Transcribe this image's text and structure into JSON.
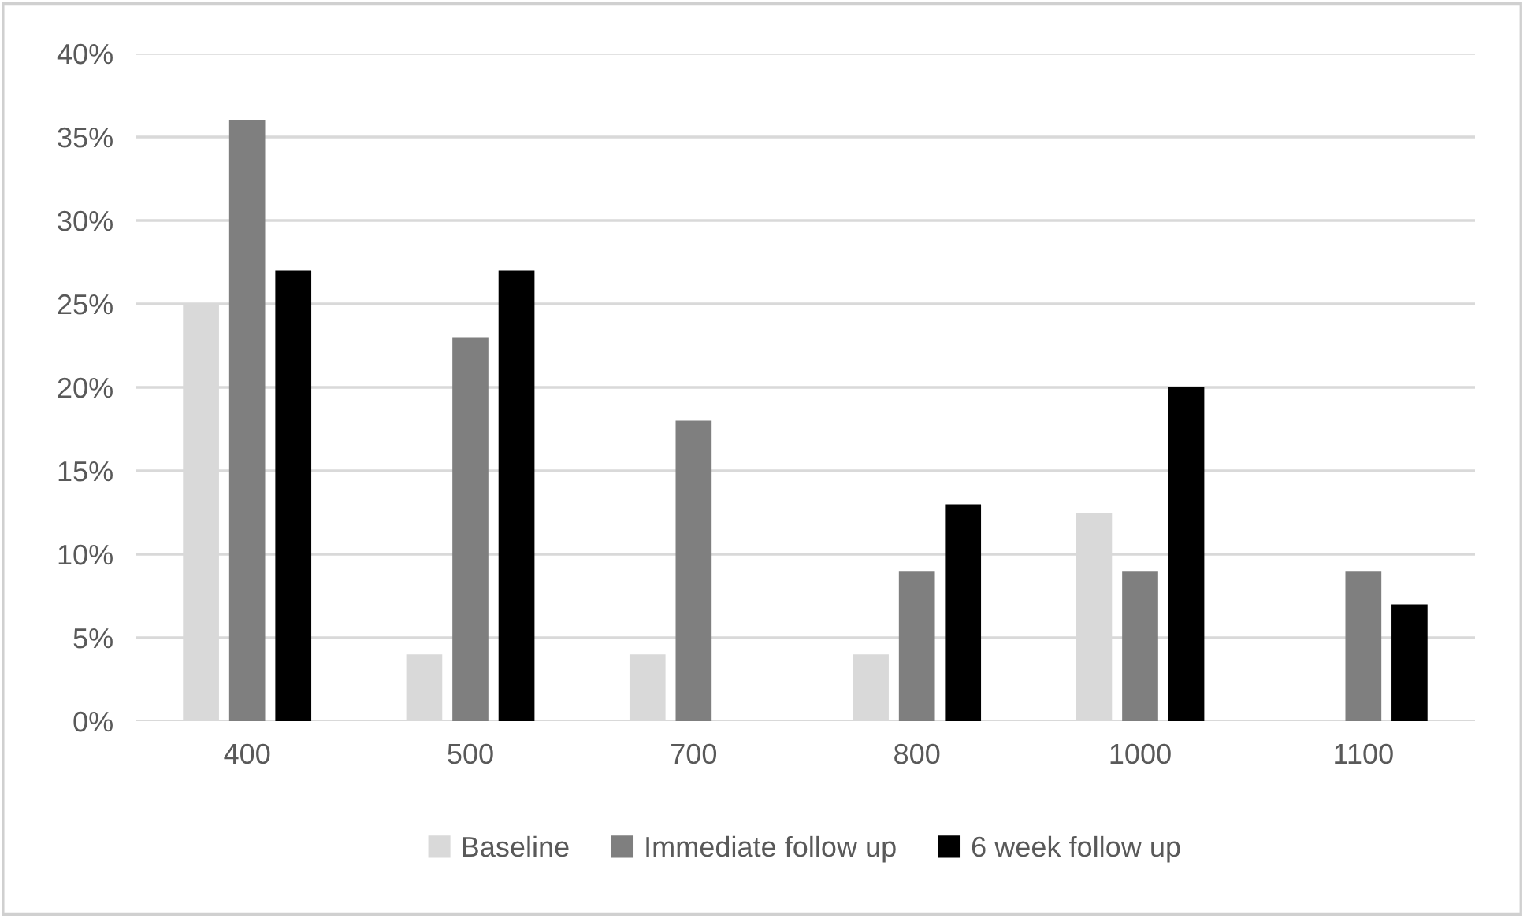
{
  "chart_data": {
    "type": "bar",
    "categories": [
      "400",
      "500",
      "700",
      "800",
      "1000",
      "1100"
    ],
    "series": [
      {
        "name": "Baseline",
        "color": "#d9d9d9",
        "values": [
          25,
          4,
          4,
          4,
          12.5,
          0
        ]
      },
      {
        "name": "Immediate follow up",
        "color": "#7f7f7f",
        "values": [
          36,
          23,
          18,
          9,
          9,
          9
        ]
      },
      {
        "name": "6 week follow up",
        "color": "#000000",
        "values": [
          27,
          27,
          0,
          13,
          20,
          7
        ]
      }
    ],
    "ylim": [
      0,
      40
    ],
    "yticks": [
      {
        "value": 0,
        "label": "0%"
      },
      {
        "value": 5,
        "label": "5%"
      },
      {
        "value": 10,
        "label": "10%"
      },
      {
        "value": 15,
        "label": "15%"
      },
      {
        "value": 20,
        "label": "20%"
      },
      {
        "value": 25,
        "label": "25%"
      },
      {
        "value": 30,
        "label": "30%"
      },
      {
        "value": 35,
        "label": "35%"
      },
      {
        "value": 40,
        "label": "40%"
      }
    ],
    "grid": "y",
    "legend": "bottom"
  }
}
